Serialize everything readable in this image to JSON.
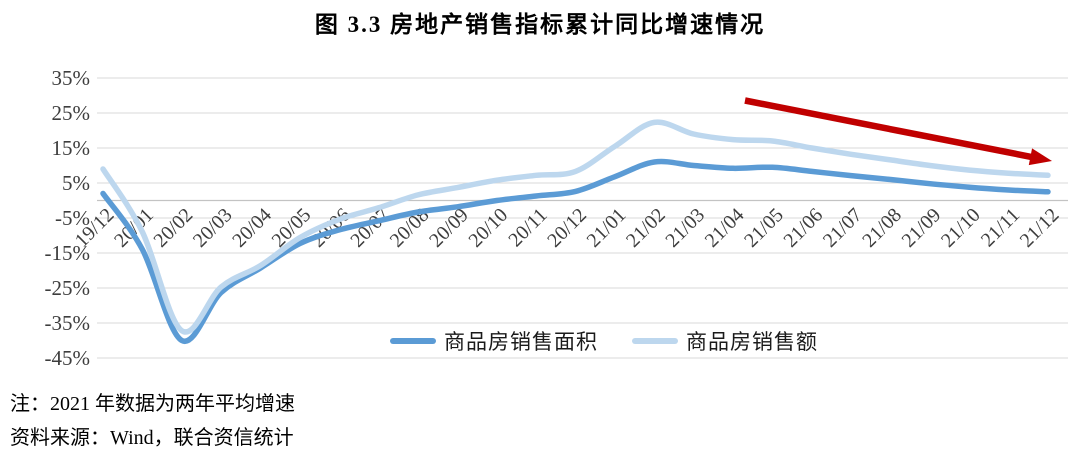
{
  "page": {
    "title": "图 3.3  房地产销售指标累计同比增速情况",
    "note": "注：2021 年数据为两年平均增速",
    "source": "资料来源：Wind，联合资信统计"
  },
  "chart_data": {
    "type": "line",
    "title": "图 3.3 房地产销售指标累计同比增速情况",
    "categories": [
      "19/12",
      "20/01",
      "20/02",
      "20/03",
      "20/04",
      "20/05",
      "20/06",
      "20/07",
      "20/08",
      "20/09",
      "20/10",
      "20/11",
      "20/12",
      "21/01",
      "21/02",
      "21/03",
      "21/04",
      "21/05",
      "21/06",
      "21/07",
      "21/08",
      "21/09",
      "21/10",
      "21/11",
      "21/12"
    ],
    "series": [
      {
        "name": "商品房销售面积",
        "color": "#5B9BD5",
        "values": [
          2.0,
          -14.0,
          -40.0,
          -26.3,
          -19.3,
          -12.3,
          -8.4,
          -5.8,
          -3.3,
          -1.8,
          0.0,
          1.3,
          2.6,
          6.8,
          11.0,
          10.0,
          9.2,
          9.5,
          8.3,
          7.1,
          6.0,
          4.8,
          3.8,
          3.0,
          2.5
        ]
      },
      {
        "name": "商品房销售额",
        "color": "#BDD7EE",
        "values": [
          9.0,
          -9.0,
          -37.2,
          -24.7,
          -18.6,
          -10.6,
          -5.4,
          -2.1,
          1.6,
          3.7,
          5.8,
          7.2,
          8.3,
          15.5,
          22.3,
          19.0,
          17.4,
          17.0,
          15.0,
          13.2,
          11.6,
          10.0,
          8.7,
          7.8,
          7.2
        ]
      }
    ],
    "y_axis": {
      "unit": "%",
      "min": -45,
      "max": 35,
      "tick_step": 10,
      "ticks": [
        "35%",
        "25%",
        "15%",
        "5%",
        "-5%",
        "-15%",
        "-25%",
        "-35%",
        "-45%"
      ]
    },
    "x_axis": {
      "label_rotation_deg": 45,
      "axis_line_at": 0
    },
    "grid": true,
    "legend_position": "bottom",
    "annotation": {
      "type": "arrow",
      "color": "#C00000",
      "from_category": "21/04",
      "to_category": "21/12",
      "direction": "down-right"
    },
    "colors": {
      "grid": "#D9D9D9",
      "zero_axis": "#C3C3C3",
      "tick_text": "#3d3d3d"
    }
  }
}
